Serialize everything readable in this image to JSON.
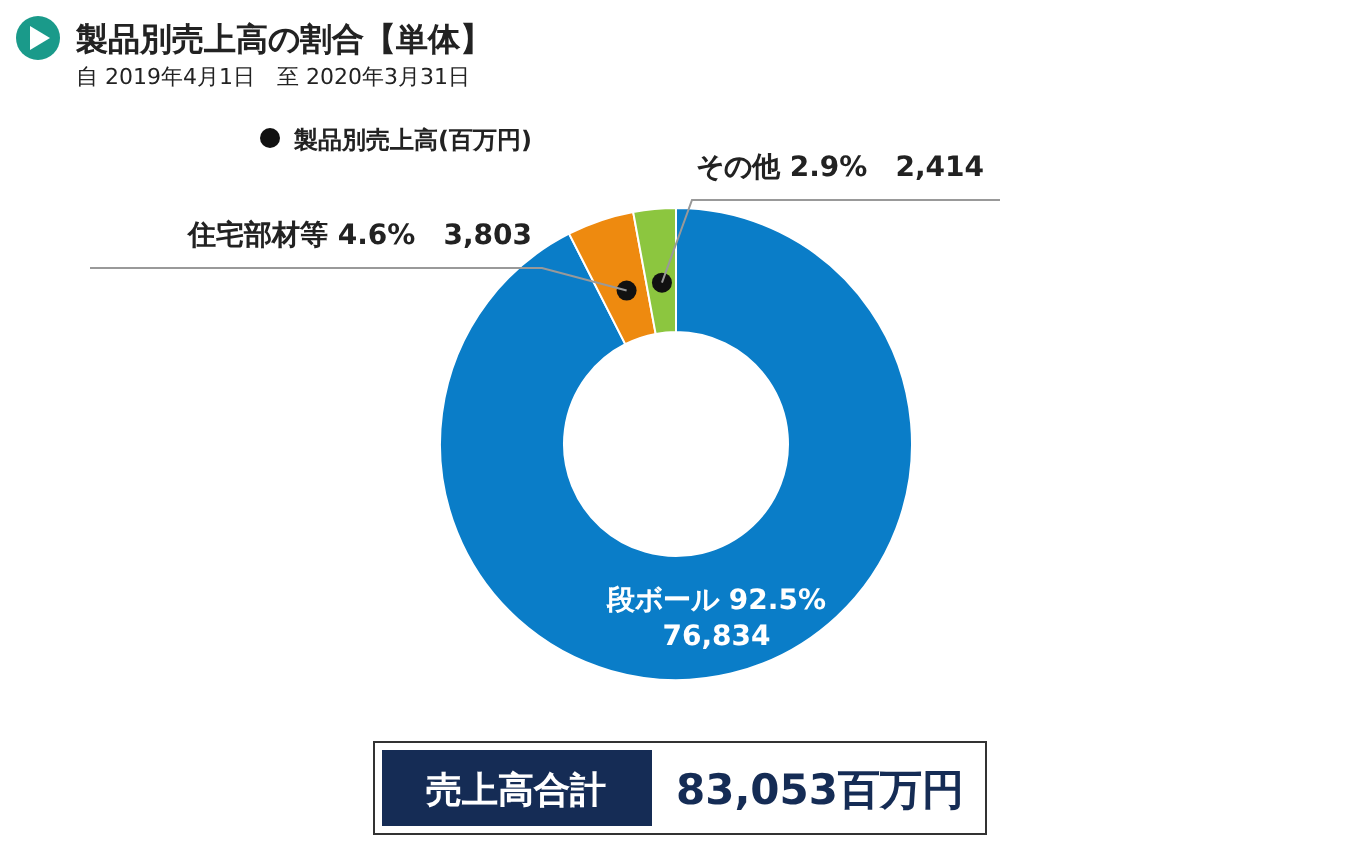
{
  "chart_data": {
    "type": "donut",
    "title": "製品別売上高の割合【単体】",
    "subtitle": "自 2019年4月1日　至 2020年3月31日",
    "legend_title": "製品別売上高(百万円)",
    "categories": [
      "段ボール",
      "住宅部材等",
      "その他"
    ],
    "values": [
      76834,
      3803,
      2414
    ],
    "value_labels": [
      "92.5% 76,834",
      "4.6% 3,803",
      "2.9% 2,414"
    ],
    "colors": [
      "#0a7dc8",
      "#ee8a0f",
      "#8cc63f"
    ],
    "annotations": [
      "売上高合計",
      "83,053百万円"
    ]
  }
}
